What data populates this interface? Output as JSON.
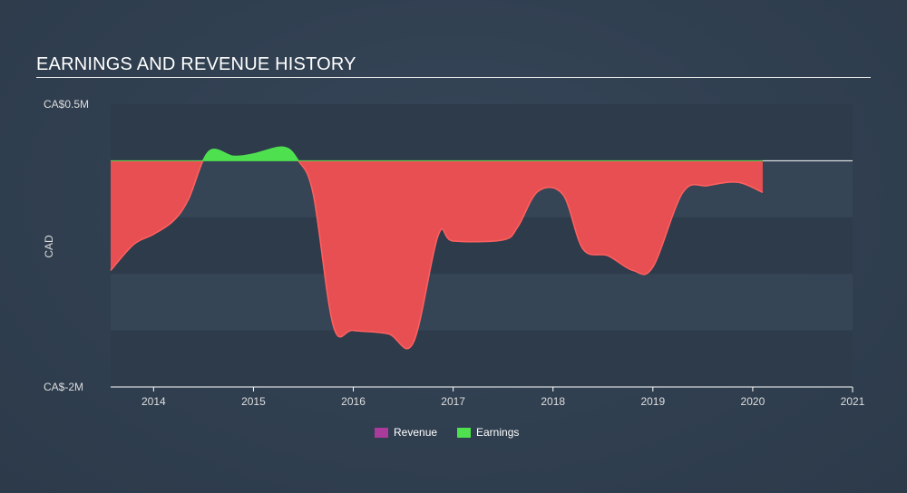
{
  "chart_data": {
    "type": "area",
    "title": "EARNINGS AND REVENUE HISTORY",
    "ylabel": "CAD",
    "ylim": [
      -2,
      0.5
    ],
    "y_tick_labels": [
      "CA$0.5M",
      "CA$-2M"
    ],
    "xlim": [
      2013.57,
      2021
    ],
    "x_ticks": [
      "2014",
      "2015",
      "2016",
      "2017",
      "2018",
      "2019",
      "2020",
      "2021"
    ],
    "legend": [
      {
        "name": "Revenue",
        "color": "#a93b9a"
      },
      {
        "name": "Earnings",
        "color": "#4fe04f"
      }
    ],
    "colors": {
      "positive": "#4fe04f",
      "negative": "#e84f53",
      "negative_line": "#ff6060"
    },
    "series": [
      {
        "name": "Earnings",
        "unit": "CA$M",
        "points": [
          [
            2013.57,
            -0.97
          ],
          [
            2013.8,
            -0.74
          ],
          [
            2014.0,
            -0.65
          ],
          [
            2014.2,
            -0.53
          ],
          [
            2014.35,
            -0.34
          ],
          [
            2014.55,
            0.08
          ],
          [
            2014.8,
            0.04
          ],
          [
            2015.0,
            0.06
          ],
          [
            2015.3,
            0.12
          ],
          [
            2015.45,
            0.0
          ],
          [
            2015.6,
            -0.3
          ],
          [
            2015.8,
            -1.46
          ],
          [
            2016.0,
            -1.5
          ],
          [
            2016.35,
            -1.53
          ],
          [
            2016.6,
            -1.61
          ],
          [
            2016.85,
            -0.66
          ],
          [
            2017.0,
            -0.71
          ],
          [
            2017.5,
            -0.7
          ],
          [
            2017.65,
            -0.58
          ],
          [
            2017.85,
            -0.27
          ],
          [
            2018.1,
            -0.3
          ],
          [
            2018.3,
            -0.78
          ],
          [
            2018.55,
            -0.84
          ],
          [
            2018.8,
            -0.97
          ],
          [
            2019.0,
            -0.94
          ],
          [
            2019.3,
            -0.28
          ],
          [
            2019.55,
            -0.22
          ],
          [
            2019.85,
            -0.19
          ],
          [
            2020.1,
            -0.28
          ]
        ]
      }
    ]
  }
}
